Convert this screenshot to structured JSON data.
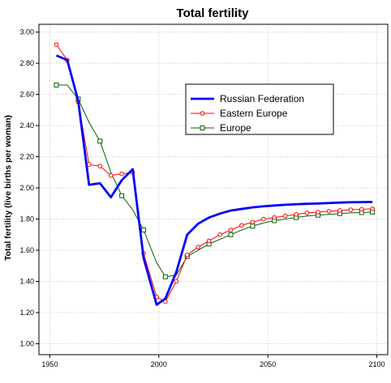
{
  "chart_data": {
    "type": "line",
    "title": "Total fertility",
    "xlabel": "",
    "ylabel": "Total fertility (live births per woman)",
    "xlim": [
      1945,
      2105
    ],
    "ylim": [
      0.93,
      3.05
    ],
    "xticks": [
      1950,
      2000,
      2050,
      2100
    ],
    "yticks": [
      1.0,
      1.2,
      1.4,
      1.6,
      1.8,
      2.0,
      2.2,
      2.4,
      2.6,
      2.8,
      3.0
    ],
    "xtick_labels": [
      "1950",
      "2000",
      "2050",
      "2100"
    ],
    "ytick_labels": [
      "1.00",
      "1.20",
      "1.40",
      "1.60",
      "1.80",
      "2.00",
      "2.20",
      "2.40",
      "2.60",
      "2.80",
      "3.00"
    ],
    "grid": true,
    "legend_position": "upper-right",
    "series": [
      {
        "name": "Russian Federation",
        "color": "#0000ff",
        "marker": "none",
        "x": [
          1953,
          1958,
          1963,
          1968,
          1973,
          1978,
          1983,
          1988,
          1993,
          1999,
          2003,
          2008,
          2013,
          2018,
          2023,
          2028,
          2033,
          2038,
          2043,
          2048,
          2053,
          2058,
          2063,
          2068,
          2073,
          2078,
          2083,
          2088,
          2093,
          2098
        ],
        "values": [
          2.85,
          2.82,
          2.56,
          2.02,
          2.03,
          1.94,
          2.05,
          2.12,
          1.55,
          1.25,
          1.29,
          1.46,
          1.7,
          1.77,
          1.81,
          1.835,
          1.855,
          1.865,
          1.875,
          1.882,
          1.887,
          1.892,
          1.895,
          1.898,
          1.9,
          1.903,
          1.906,
          1.908,
          1.909,
          1.91
        ]
      },
      {
        "name": "Eastern Europe",
        "color": "#ff0000",
        "marker": "circle",
        "x": [
          1953,
          1958,
          1963,
          1968,
          1973,
          1978,
          1983,
          1988,
          1993,
          1999,
          2003,
          2008,
          2013,
          2018,
          2023,
          2028,
          2033,
          2038,
          2043,
          2048,
          2053,
          2058,
          2063,
          2068,
          2073,
          2078,
          2083,
          2088,
          2093,
          2098
        ],
        "values": [
          2.92,
          2.82,
          2.55,
          2.15,
          2.14,
          2.08,
          2.09,
          2.1,
          1.58,
          1.3,
          1.27,
          1.4,
          1.57,
          1.62,
          1.66,
          1.7,
          1.73,
          1.76,
          1.78,
          1.8,
          1.81,
          1.82,
          1.83,
          1.84,
          1.845,
          1.85,
          1.855,
          1.86,
          1.863,
          1.866
        ]
      },
      {
        "name": "Europe",
        "color": "#006400",
        "marker": "square",
        "x": [
          1953,
          1958,
          1963,
          1968,
          1973,
          1978,
          1983,
          1988,
          1993,
          1999,
          2003,
          2008,
          2013,
          2018,
          2023,
          2028,
          2033,
          2038,
          2043,
          2048,
          2053,
          2058,
          2063,
          2068,
          2073,
          2078,
          2083,
          2088,
          2093,
          2098
        ],
        "values": [
          2.66,
          2.66,
          2.57,
          2.42,
          2.3,
          2.1,
          1.95,
          1.86,
          1.73,
          1.52,
          1.43,
          1.44,
          1.56,
          1.6,
          1.64,
          1.67,
          1.7,
          1.73,
          1.755,
          1.775,
          1.79,
          1.8,
          1.81,
          1.82,
          1.825,
          1.83,
          1.835,
          1.84,
          1.842,
          1.845
        ]
      }
    ]
  }
}
